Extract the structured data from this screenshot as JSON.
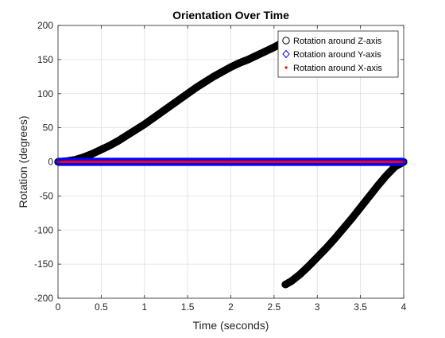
{
  "chart_data": {
    "type": "scatter",
    "title": "Orientation Over Time",
    "xlabel": "Time (seconds)",
    "ylabel": "Rotation (degrees)",
    "xlim": [
      0,
      4
    ],
    "ylim": [
      -200,
      200
    ],
    "xticks": [
      0,
      0.5,
      1,
      1.5,
      2,
      2.5,
      3,
      3.5,
      4
    ],
    "yticks": [
      -200,
      -150,
      -100,
      -50,
      0,
      50,
      100,
      150,
      200
    ],
    "xtick_labels": [
      "0",
      "0.5",
      "1",
      "1.5",
      "2",
      "2.5",
      "3",
      "3.5",
      "4"
    ],
    "ytick_labels": [
      "-200",
      "-150",
      "-100",
      "-50",
      "0",
      "50",
      "100",
      "150",
      "200"
    ],
    "grid": true,
    "legend_position": "top-right",
    "series": [
      {
        "name": "Rotation around Z-axis",
        "marker": "circle",
        "color": "#000000",
        "points": [
          [
            0.0,
            0
          ],
          [
            0.1,
            1
          ],
          [
            0.2,
            3
          ],
          [
            0.3,
            7
          ],
          [
            0.4,
            12
          ],
          [
            0.5,
            18
          ],
          [
            0.6,
            24
          ],
          [
            0.7,
            31
          ],
          [
            0.8,
            39
          ],
          [
            0.9,
            47
          ],
          [
            1.0,
            55
          ],
          [
            1.1,
            64
          ],
          [
            1.2,
            73
          ],
          [
            1.3,
            82
          ],
          [
            1.4,
            91
          ],
          [
            1.5,
            100
          ],
          [
            1.6,
            109
          ],
          [
            1.7,
            117
          ],
          [
            1.8,
            125
          ],
          [
            1.9,
            132
          ],
          [
            2.0,
            139
          ],
          [
            2.1,
            145
          ],
          [
            2.2,
            150
          ],
          [
            2.3,
            156
          ],
          [
            2.4,
            162
          ],
          [
            2.5,
            168
          ],
          [
            2.6,
            175
          ],
          [
            2.62,
            178
          ],
          [
            2.63,
            180
          ],
          [
            2.63,
            -180
          ],
          [
            2.7,
            -175
          ],
          [
            2.8,
            -165
          ],
          [
            2.9,
            -153
          ],
          [
            3.0,
            -140
          ],
          [
            3.1,
            -127
          ],
          [
            3.2,
            -113
          ],
          [
            3.3,
            -98
          ],
          [
            3.4,
            -83
          ],
          [
            3.5,
            -67
          ],
          [
            3.6,
            -51
          ],
          [
            3.7,
            -35
          ],
          [
            3.8,
            -20
          ],
          [
            3.9,
            -7
          ],
          [
            4.0,
            0
          ]
        ]
      },
      {
        "name": "Rotation around Y-axis",
        "marker": "diamond",
        "color": "#0000ff",
        "points": [
          [
            0.0,
            0
          ],
          [
            4.0,
            0
          ]
        ]
      },
      {
        "name": "Rotation around X-axis",
        "marker": "point",
        "color": "#ff0000",
        "points": [
          [
            0.0,
            0
          ],
          [
            4.0,
            0
          ]
        ]
      }
    ]
  }
}
